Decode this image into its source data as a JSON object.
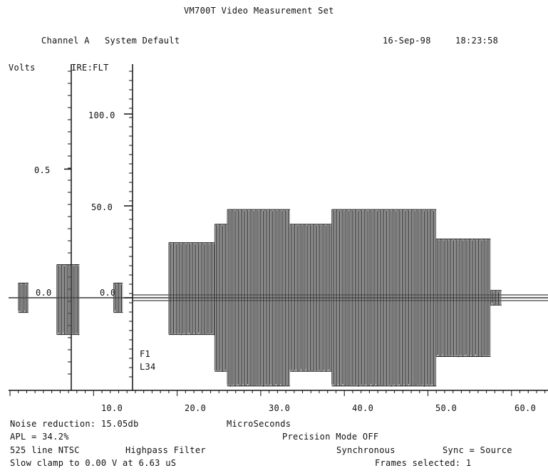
{
  "header": {
    "title": "VM700T Video Measurement Set",
    "channel": "Channel A",
    "setup": "System Default",
    "date": "16-Sep-98",
    "time": "18:23:58"
  },
  "chart_data": {
    "type": "line",
    "title": "VM700T Video Measurement Set",
    "xlabel": "MicroSeconds",
    "ylabel_left": "Volts",
    "ylabel_right": "IRE:FLT",
    "xlim": [
      0,
      65
    ],
    "x_ticks": [
      "10.0",
      "20.0",
      "30.0",
      "40.0",
      "50.0",
      "60.0"
    ],
    "volts_ticks": [
      "0.5",
      "0.0"
    ],
    "ire_ticks": [
      "100.0",
      "50.0",
      "0.0"
    ],
    "markers": [
      "F1",
      "L34"
    ],
    "series": [
      {
        "segments": [
          {
            "x_start": 1.0,
            "x_end": 2.2,
            "ire_max": 8,
            "ire_min": -8
          },
          {
            "x_start": 5.6,
            "x_end": 8.3,
            "ire_max": 18,
            "ire_min": -20
          },
          {
            "x_start": 12.4,
            "x_end": 13.5,
            "ire_max": 8,
            "ire_min": -8
          },
          {
            "x_start": 19.0,
            "x_end": 24.5,
            "ire_max": 30,
            "ire_min": -20
          },
          {
            "x_start": 24.5,
            "x_end": 26.0,
            "ire_max": 40,
            "ire_min": -40
          },
          {
            "x_start": 26.0,
            "x_end": 33.5,
            "ire_max": 48,
            "ire_min": -48
          },
          {
            "x_start": 33.5,
            "x_end": 38.5,
            "ire_max": 40,
            "ire_min": -40
          },
          {
            "x_start": 38.5,
            "x_end": 51.0,
            "ire_max": 48,
            "ire_min": -48
          },
          {
            "x_start": 51.0,
            "x_end": 57.5,
            "ire_max": 32,
            "ire_min": -32
          },
          {
            "x_start": 57.5,
            "x_end": 58.8,
            "ire_max": 4,
            "ire_min": -4
          }
        ]
      }
    ]
  },
  "footer": {
    "noise": "Noise reduction: 15.05db",
    "apl": "APL = 34.2%",
    "line": "525 line NTSC",
    "filter": "Highpass Filter",
    "clamp": "Slow clamp to 0.00 V at 6.63 uS",
    "xlabel": "MicroSeconds",
    "mode": "Precision Mode OFF",
    "sync": "Synchronous",
    "sync_source": "Sync = Source",
    "frames": "Frames selected: 1"
  }
}
